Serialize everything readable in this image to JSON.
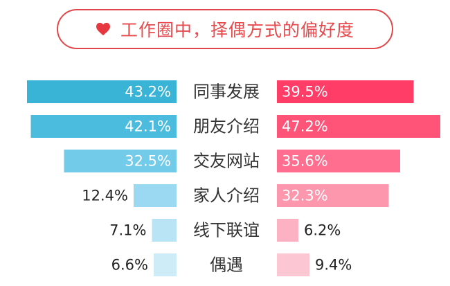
{
  "colors": {
    "accent": "#e64a4d",
    "left_series": "#39b3d6",
    "right_series": "#ff3d67"
  },
  "icons": {
    "title_icon": "heart-icon"
  },
  "chart_data": {
    "type": "bar",
    "title": "工作圈中，择偶方式的偏好度",
    "categories": [
      "同事发展",
      "朋友介绍",
      "交友网站",
      "家人介绍",
      "线下联谊",
      "偶遇"
    ],
    "series": [
      {
        "values": [
          43.2,
          42.1,
          32.5,
          12.4,
          7.1,
          6.6
        ],
        "labels": [
          "43.2%",
          "42.1%",
          "32.5%",
          "12.4%",
          "7.1%",
          "6.6%"
        ]
      },
      {
        "values": [
          39.5,
          47.2,
          35.6,
          32.3,
          6.2,
          9.4
        ],
        "labels": [
          "39.5%",
          "47.2%",
          "35.6%",
          "32.3%",
          "6.2%",
          "9.4%"
        ]
      }
    ]
  }
}
